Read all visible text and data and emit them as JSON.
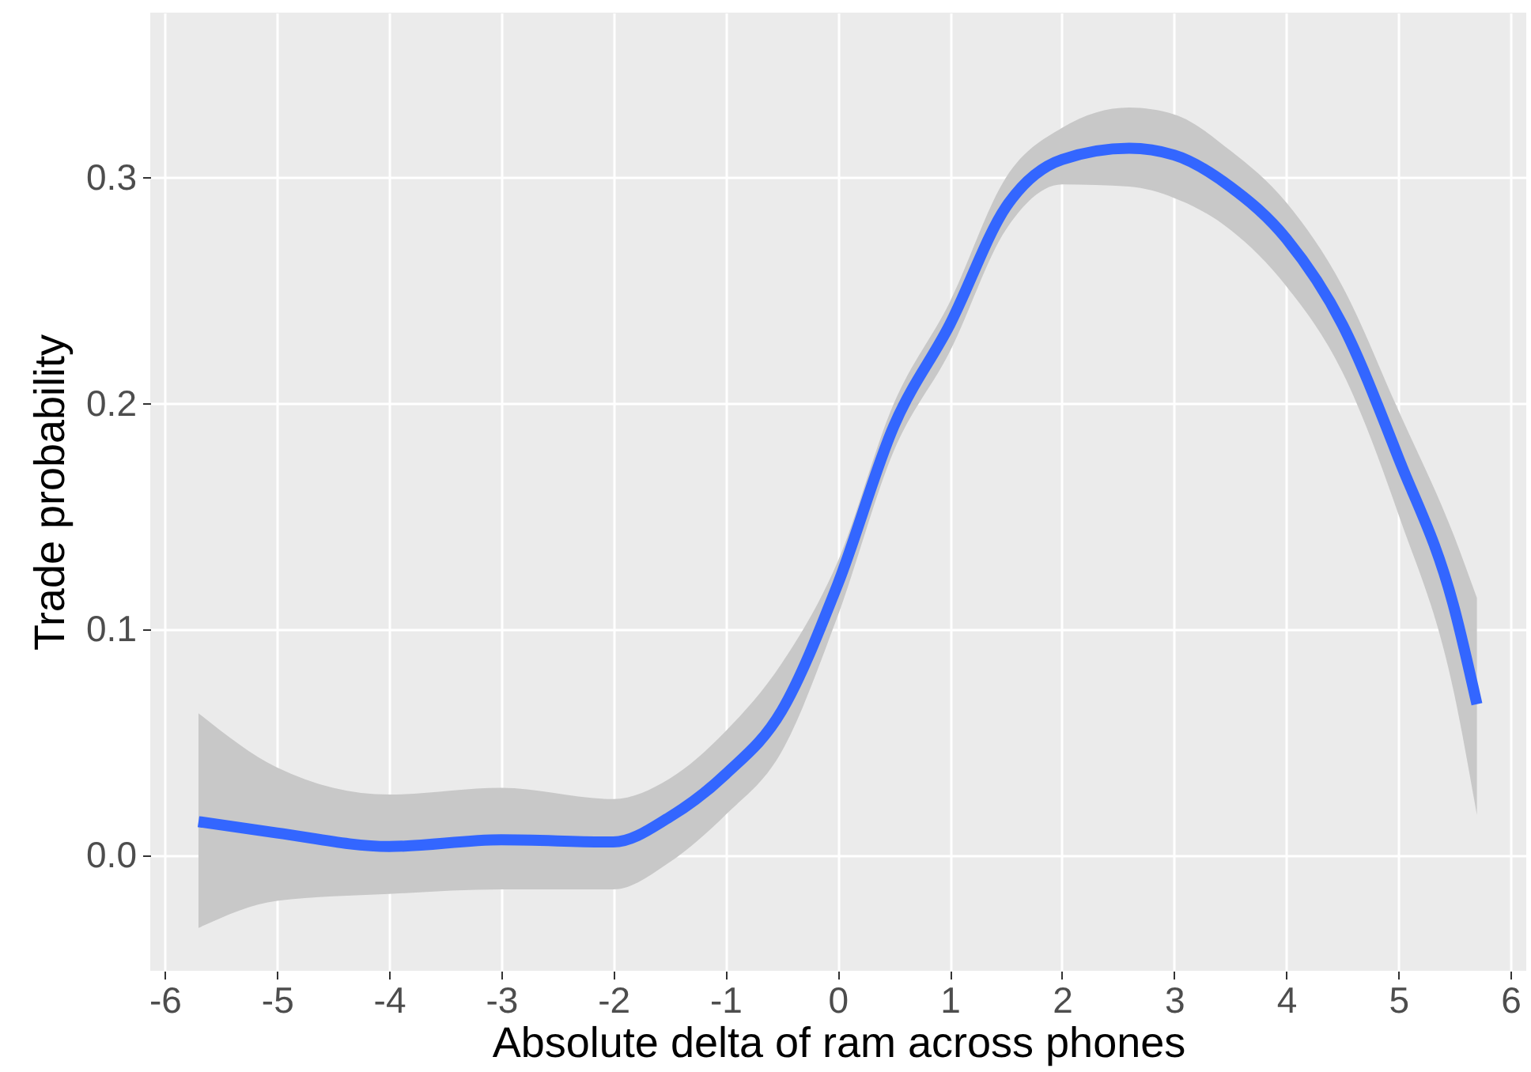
{
  "chart_data": {
    "type": "line",
    "xlabel": "Absolute delta of ram across phones",
    "ylabel": "Trade probability",
    "x": [
      -5.7,
      -5,
      -4,
      -3,
      -2,
      -1.5,
      -1,
      -0.5,
      0,
      0.5,
      1,
      1.5,
      2,
      2.6,
      3,
      3.5,
      4,
      4.5,
      5,
      5.5,
      5.7
    ],
    "series": [
      {
        "color": "#3366ff",
        "values": [
          0.015,
          0.01,
          0.004,
          0.007,
          0.006,
          0.017,
          0.036,
          0.064,
          0.12,
          0.19,
          0.235,
          0.287,
          0.308,
          0.313,
          0.31,
          0.296,
          0.273,
          0.235,
          0.176,
          0.109,
          0.067
        ],
        "lower": [
          -0.032,
          -0.02,
          -0.017,
          -0.015,
          -0.015,
          -0.003,
          0.018,
          0.046,
          0.106,
          0.179,
          0.223,
          0.277,
          0.297,
          0.296,
          0.291,
          0.277,
          0.252,
          0.214,
          0.151,
          0.071,
          0.018
        ],
        "upper": [
          0.063,
          0.039,
          0.027,
          0.03,
          0.025,
          0.034,
          0.055,
          0.085,
          0.13,
          0.2,
          0.245,
          0.3,
          0.322,
          0.331,
          0.328,
          0.312,
          0.289,
          0.252,
          0.197,
          0.141,
          0.114
        ]
      }
    ],
    "xlim": [
      -6.13,
      6.14
    ],
    "ylim": [
      -0.051,
      0.373
    ],
    "xticks": [
      -6,
      -5,
      -4,
      -3,
      -2,
      -1,
      0,
      1,
      2,
      3,
      4,
      5,
      6
    ],
    "yticks": [
      {
        "value": 0,
        "label": "0.0"
      },
      0.1,
      0.2,
      0.3
    ],
    "grid": true,
    "line_style": "solid"
  }
}
